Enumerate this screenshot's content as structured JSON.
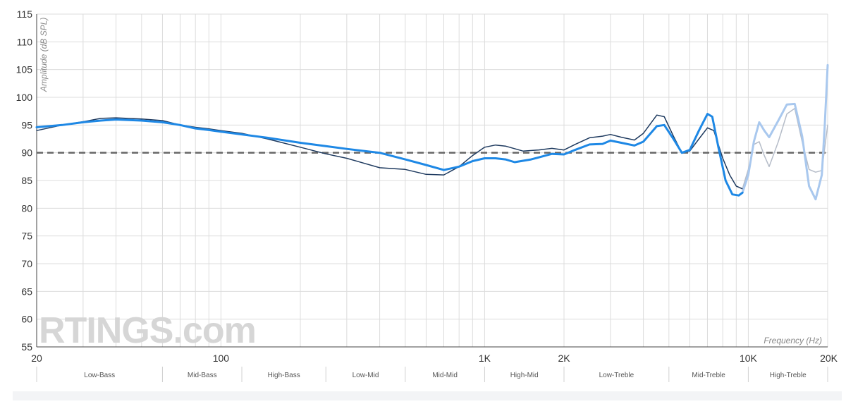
{
  "chart_data": {
    "type": "line",
    "xlabel": "Frequency (Hz)",
    "ylabel": "Amplitude (dB SPL)",
    "x_scale": "log",
    "xlim": [
      20,
      20000
    ],
    "ylim": [
      55,
      115
    ],
    "y_ticks": [
      55,
      60,
      65,
      70,
      75,
      80,
      85,
      90,
      95,
      100,
      105,
      110,
      115
    ],
    "x_ticks": [
      {
        "value": 20,
        "label": "20"
      },
      {
        "value": 100,
        "label": "100"
      },
      {
        "value": 1000,
        "label": "1K"
      },
      {
        "value": 2000,
        "label": "2K"
      },
      {
        "value": 10000,
        "label": "10K"
      },
      {
        "value": 20000,
        "label": "20K"
      }
    ],
    "grid": true,
    "target_line": {
      "y": 90,
      "style": "dashed",
      "color": "#666666"
    },
    "bands": [
      {
        "label": "Low-Bass",
        "from": 20,
        "to": 60
      },
      {
        "label": "Mid-Bass",
        "from": 60,
        "to": 120
      },
      {
        "label": "High-Bass",
        "from": 120,
        "to": 250
      },
      {
        "label": "Low-Mid",
        "from": 250,
        "to": 500
      },
      {
        "label": "Mid-Mid",
        "from": 500,
        "to": 1000
      },
      {
        "label": "High-Mid",
        "from": 1000,
        "to": 2000
      },
      {
        "label": "Low-Treble",
        "from": 2000,
        "to": 5000
      },
      {
        "label": "Mid-Treble",
        "from": 5000,
        "to": 10000
      },
      {
        "label": "High-Treble",
        "from": 10000,
        "to": 20000
      }
    ],
    "series": [
      {
        "color": "#1e3a5f",
        "faded_color": "#b5bcc8",
        "fade_from": 9500,
        "width": 1.5,
        "points": [
          [
            20,
            94
          ],
          [
            25,
            95
          ],
          [
            30,
            95.6
          ],
          [
            35,
            96.2
          ],
          [
            40,
            96.3
          ],
          [
            50,
            96.1
          ],
          [
            60,
            95.8
          ],
          [
            70,
            95
          ],
          [
            80,
            94.6
          ],
          [
            90,
            94.3
          ],
          [
            100,
            94
          ],
          [
            120,
            93.5
          ],
          [
            150,
            92.5
          ],
          [
            200,
            91
          ],
          [
            250,
            89.8
          ],
          [
            300,
            89
          ],
          [
            400,
            87.3
          ],
          [
            500,
            87
          ],
          [
            600,
            86.1
          ],
          [
            700,
            86
          ],
          [
            800,
            87.5
          ],
          [
            900,
            89.5
          ],
          [
            1000,
            91
          ],
          [
            1100,
            91.4
          ],
          [
            1200,
            91.2
          ],
          [
            1400,
            90.3
          ],
          [
            1600,
            90.5
          ],
          [
            1800,
            90.8
          ],
          [
            2000,
            90.5
          ],
          [
            2200,
            91.5
          ],
          [
            2500,
            92.7
          ],
          [
            2800,
            93
          ],
          [
            3000,
            93.3
          ],
          [
            3300,
            92.8
          ],
          [
            3700,
            92.3
          ],
          [
            4000,
            93.5
          ],
          [
            4500,
            96.8
          ],
          [
            4800,
            96.5
          ],
          [
            5200,
            93
          ],
          [
            5600,
            90
          ],
          [
            6000,
            90.3
          ],
          [
            6500,
            92.5
          ],
          [
            7000,
            94.5
          ],
          [
            7400,
            94
          ],
          [
            8000,
            89
          ],
          [
            8500,
            86
          ],
          [
            9000,
            84
          ],
          [
            9500,
            83.5
          ],
          [
            10000,
            87
          ],
          [
            10500,
            91.5
          ],
          [
            11000,
            92
          ],
          [
            11500,
            89.5
          ],
          [
            12000,
            87.5
          ],
          [
            13000,
            92
          ],
          [
            14000,
            97
          ],
          [
            15000,
            98
          ],
          [
            16000,
            92
          ],
          [
            17000,
            87
          ],
          [
            18000,
            86.5
          ],
          [
            19000,
            86.8
          ],
          [
            20000,
            95
          ]
        ]
      },
      {
        "color": "#1e88e5",
        "faded_color": "#a9c8ee",
        "fade_from": 9500,
        "width": 3,
        "points": [
          [
            20,
            94.6
          ],
          [
            25,
            95
          ],
          [
            30,
            95.5
          ],
          [
            35,
            95.8
          ],
          [
            40,
            96
          ],
          [
            50,
            95.8
          ],
          [
            60,
            95.5
          ],
          [
            70,
            95
          ],
          [
            80,
            94.4
          ],
          [
            90,
            94.1
          ],
          [
            100,
            93.8
          ],
          [
            120,
            93.3
          ],
          [
            150,
            92.7
          ],
          [
            200,
            91.8
          ],
          [
            250,
            91.2
          ],
          [
            300,
            90.7
          ],
          [
            400,
            90
          ],
          [
            500,
            88.8
          ],
          [
            600,
            87.8
          ],
          [
            700,
            86.9
          ],
          [
            800,
            87.5
          ],
          [
            900,
            88.5
          ],
          [
            1000,
            89
          ],
          [
            1100,
            89
          ],
          [
            1200,
            88.8
          ],
          [
            1300,
            88.3
          ],
          [
            1500,
            88.8
          ],
          [
            1800,
            89.8
          ],
          [
            2000,
            89.7
          ],
          [
            2200,
            90.5
          ],
          [
            2500,
            91.5
          ],
          [
            2800,
            91.6
          ],
          [
            3000,
            92.2
          ],
          [
            3300,
            91.8
          ],
          [
            3700,
            91.3
          ],
          [
            4000,
            92
          ],
          [
            4500,
            94.8
          ],
          [
            4800,
            95
          ],
          [
            5200,
            92.5
          ],
          [
            5600,
            90
          ],
          [
            6000,
            90.5
          ],
          [
            6500,
            94
          ],
          [
            7000,
            97
          ],
          [
            7300,
            96.5
          ],
          [
            7700,
            91
          ],
          [
            8200,
            85
          ],
          [
            8700,
            82.5
          ],
          [
            9200,
            82.3
          ],
          [
            9500,
            82.8
          ],
          [
            10000,
            86
          ],
          [
            10500,
            92
          ],
          [
            11000,
            95.5
          ],
          [
            11500,
            94
          ],
          [
            12000,
            92.8
          ],
          [
            13000,
            95.8
          ],
          [
            14000,
            98.7
          ],
          [
            15000,
            98.8
          ],
          [
            16000,
            93
          ],
          [
            17000,
            84
          ],
          [
            18000,
            81.6
          ],
          [
            19000,
            86
          ],
          [
            19500,
            95
          ],
          [
            20000,
            105.8
          ]
        ]
      }
    ]
  },
  "watermark": {
    "text": "RTINGS.com"
  }
}
